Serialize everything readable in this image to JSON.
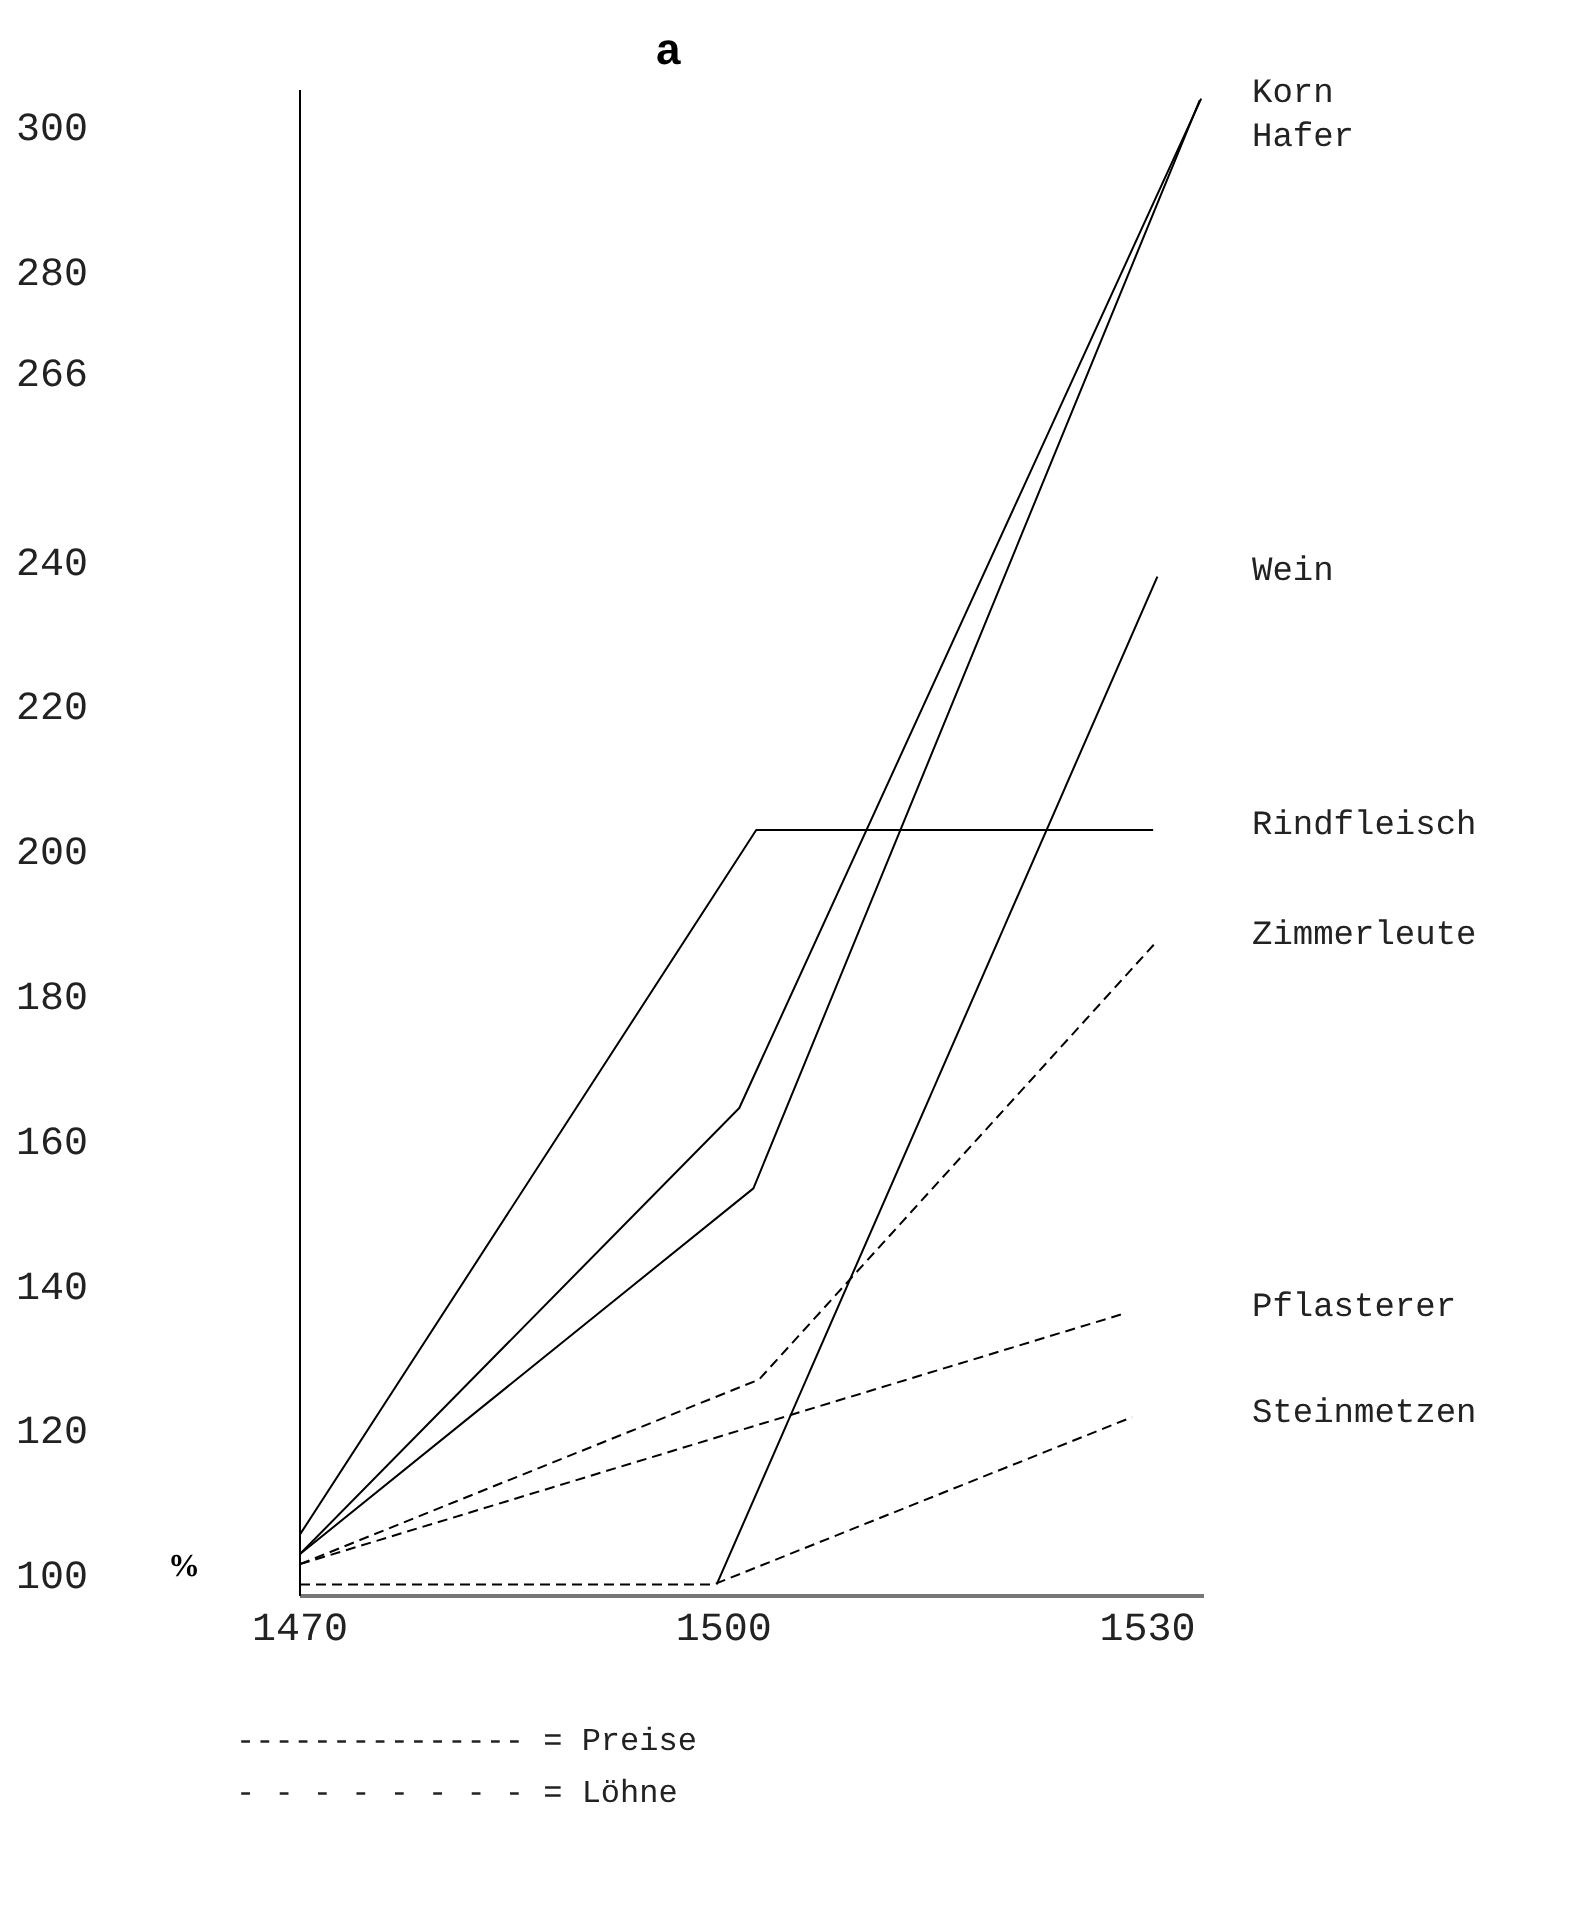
{
  "chart_data": {
    "type": "line",
    "title": "a",
    "ylabel": "%",
    "marker": "none",
    "xlim": [
      1470,
      1534
    ],
    "xticks": [
      1470,
      1500,
      1530
    ],
    "ylim": [
      97,
      305
    ],
    "yticks": [
      100,
      120,
      140,
      160,
      180,
      200,
      220,
      240,
      266,
      280,
      300
    ],
    "series": [
      {
        "name": "Korn",
        "color": "#000000",
        "line_style": "solid",
        "x": [
          1470,
          1501.1,
          1533.8
        ],
        "values": [
          102.8,
          164.4,
          303.8
        ]
      },
      {
        "name": "Hafer",
        "color": "#000000",
        "line_style": "solid",
        "x": [
          1470,
          1502.1,
          1533.7
        ],
        "values": [
          102.8,
          153.3,
          303.6
        ]
      },
      {
        "name": "Wein",
        "color": "#000000",
        "line_style": "solid",
        "x": [
          1499.5,
          1530.7
        ],
        "values": [
          98.6,
          237.8
        ]
      },
      {
        "name": "Rindfleisch",
        "color": "#000000",
        "line_style": "solid",
        "x": [
          1470,
          1502.3,
          1530.4
        ],
        "values": [
          105.5,
          202.8,
          202.8
        ]
      },
      {
        "name": "Zimmerleute",
        "color": "#000000",
        "line_style": "dashed",
        "x": [
          1470,
          1502.5,
          1530.7
        ],
        "values": [
          101.4,
          126.9,
          187.5
        ]
      },
      {
        "name": "Pflasterer",
        "color": "#000000",
        "line_style": "dashed",
        "x": [
          1470,
          1528.5
        ],
        "values": [
          101.4,
          136.1
        ]
      },
      {
        "name": "Steinmetzen",
        "color": "#000000",
        "line_style": "dashed",
        "x": [
          1470,
          1499.3,
          1528.9
        ],
        "values": [
          98.6,
          98.6,
          121.7
        ]
      }
    ],
    "annotations": [
      "--------------- = Preise",
      "- - - - - - - - = Löhne"
    ]
  }
}
